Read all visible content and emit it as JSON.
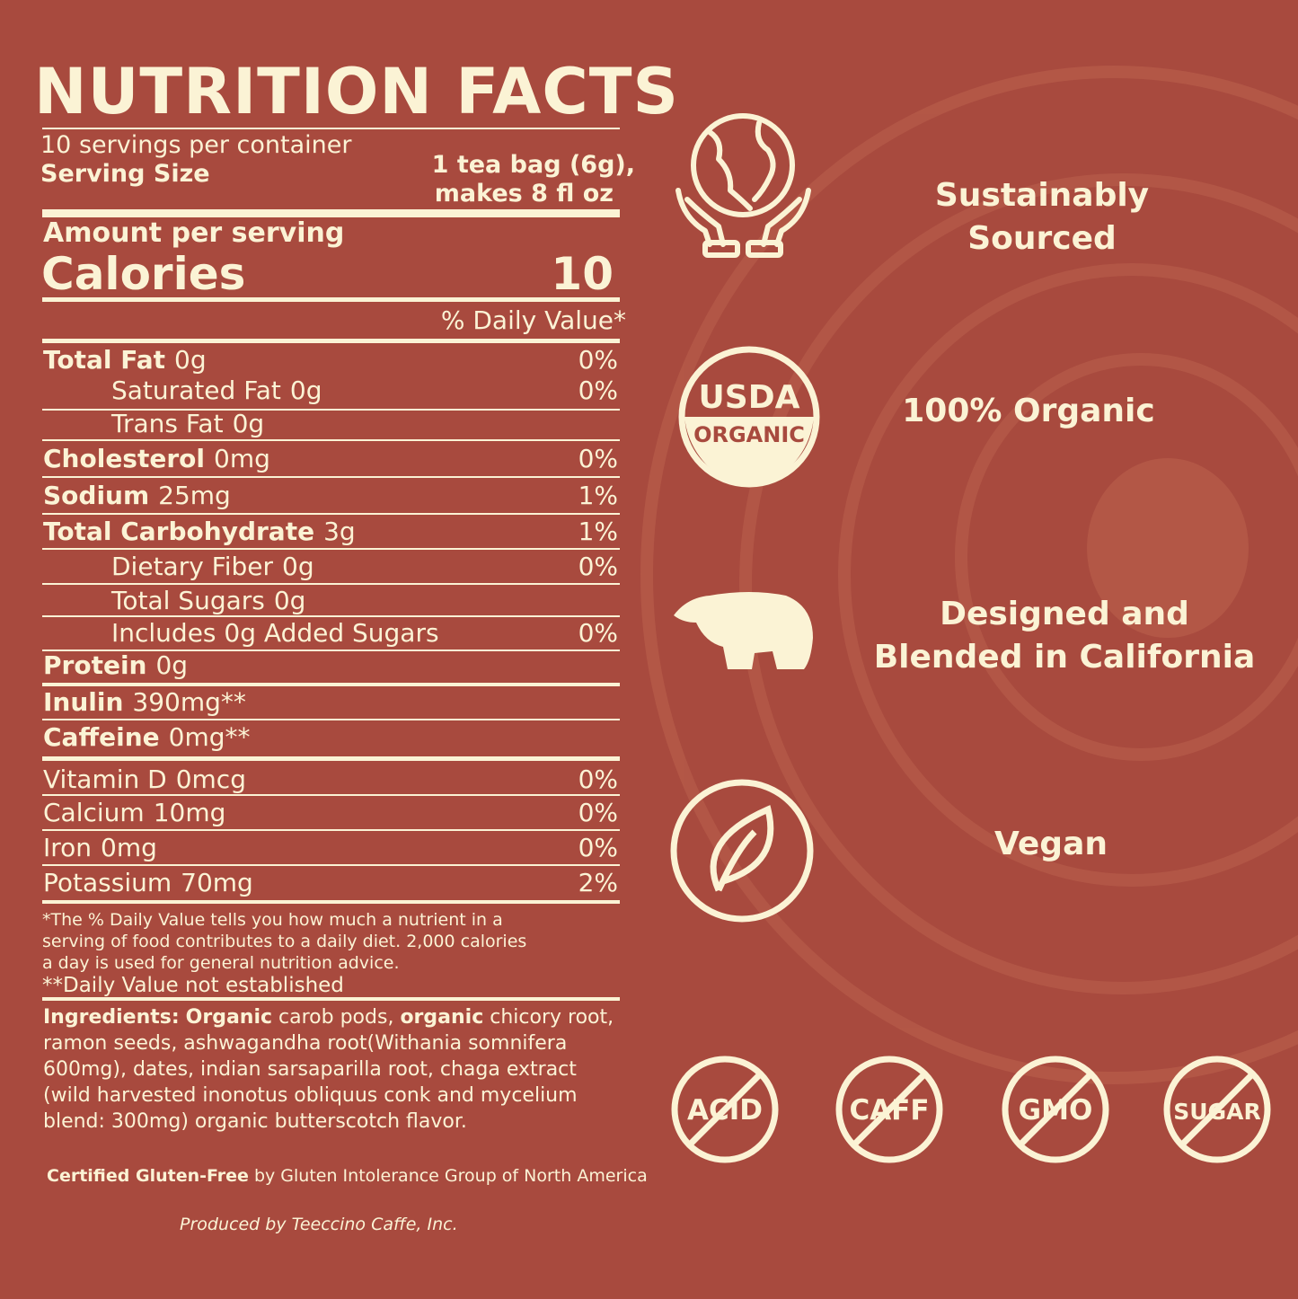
{
  "colors": {
    "background": "#a84a3e",
    "text": "#fbf3d5"
  },
  "label": {
    "title": "NUTRITION FACTS",
    "servings": "10 servings per container",
    "serving_size_label": "Serving Size",
    "serving_size_line1": "1 tea bag (6g),",
    "serving_size_line2": "makes 8 fl oz",
    "amount_per_serving": "Amount per serving",
    "calories_label": "Calories",
    "calories_value": "10",
    "dv_header": "% Daily Value*",
    "rows": [
      {
        "name": "Total Fat",
        "amount": "0g",
        "dv": "0%",
        "bold": true,
        "indent": false
      },
      {
        "name": "Saturated Fat",
        "amount": "0g",
        "dv": "0%",
        "bold": false,
        "indent": true
      },
      {
        "name": "Trans Fat",
        "amount": "0g",
        "dv": "",
        "bold": false,
        "indent": true
      },
      {
        "name": "Cholesterol",
        "amount": "0mg",
        "dv": "0%",
        "bold": true,
        "indent": false
      },
      {
        "name": "Sodium",
        "amount": "25mg",
        "dv": "1%",
        "bold": true,
        "indent": false
      },
      {
        "name": "Total Carbohydrate",
        "amount": "3g",
        "dv": "1%",
        "bold": true,
        "indent": false
      },
      {
        "name": "Dietary Fiber",
        "amount": "0g",
        "dv": "0%",
        "bold": false,
        "indent": true
      },
      {
        "name": "Total Sugars",
        "amount": "0g",
        "dv": "",
        "bold": false,
        "indent": true
      },
      {
        "name": "Includes 0g Added Sugars",
        "amount": "",
        "dv": "0%",
        "bold": false,
        "indent": true
      },
      {
        "name": "Protein",
        "amount": "0g",
        "dv": "",
        "bold": true,
        "indent": false
      },
      {
        "name": "Inulin",
        "amount": "390mg**",
        "dv": "",
        "bold": true,
        "indent": false
      },
      {
        "name": "Caffeine",
        "amount": "0mg**",
        "dv": "",
        "bold": true,
        "indent": false
      },
      {
        "name": "Vitamin D",
        "amount": "0mcg",
        "dv": "0%",
        "bold": false,
        "indent": false
      },
      {
        "name": "Calcium",
        "amount": "10mg",
        "dv": "0%",
        "bold": false,
        "indent": false
      },
      {
        "name": "Iron",
        "amount": "0mg",
        "dv": "0%",
        "bold": false,
        "indent": false
      },
      {
        "name": "Potassium",
        "amount": "70mg",
        "dv": "2%",
        "bold": false,
        "indent": false
      }
    ],
    "footnote_lines": [
      "*The % Daily Value tells you how much a nutrient in a",
      "serving of food contributes to a daily diet. 2,000 calories",
      "a day is used for general nutrition advice."
    ],
    "footnote2": "**Daily Value not established",
    "ingredients_label": "Ingredients:",
    "ingredients_bold1": "Organic",
    "ingredients_text1": " carob pods, ",
    "ingredients_bold2": "organic",
    "ingredients_text2": " chicory root, ramon seeds, ashwagandha root(Withania somnifera 600mg), dates, indian sarsaparilla root, chaga extract (wild harvested inonotus obliquus conk and mycelium blend: 300mg) organic butterscotch flavor.",
    "gluten_bold": "Certified Gluten-Free",
    "gluten_text": " by Gluten Intolerance Group of North America",
    "producer": "Produced by Teeccino Caffe, Inc."
  },
  "features": [
    {
      "icon": "globe-hands-icon",
      "label": "Sustainably Sourced"
    },
    {
      "icon": "usda-organic-icon",
      "label": "100% Organic",
      "logo_text_top": "USDA",
      "logo_text_bottom": "ORGANIC"
    },
    {
      "icon": "bear-icon",
      "label": "Designed and Blended in California"
    },
    {
      "icon": "leaf-icon",
      "label": "Vegan"
    }
  ],
  "free_badges": [
    "ACID",
    "CAFF",
    "GMO",
    "SUGAR"
  ]
}
